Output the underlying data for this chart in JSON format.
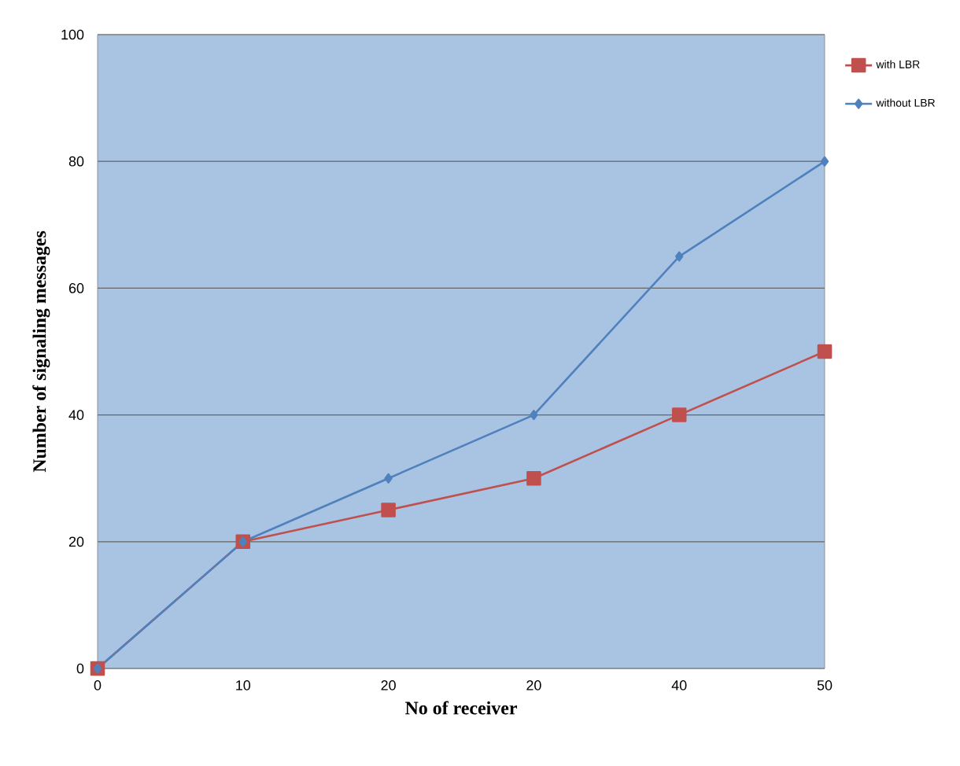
{
  "chart_data": {
    "type": "line",
    "xlabel": "No of receiver",
    "ylabel": "Number of signaling messages",
    "categories": [
      "0",
      "10",
      "20",
      "20",
      "40",
      "50"
    ],
    "series": [
      {
        "name": "with LBR",
        "color": "#c0504d",
        "marker": "square",
        "values": [
          0,
          20,
          25,
          30,
          40,
          50
        ]
      },
      {
        "name": "without LBR",
        "color": "#4f81bd",
        "marker": "diamond",
        "values": [
          0,
          20,
          30,
          40,
          65,
          80
        ]
      }
    ],
    "ylim": [
      0,
      100
    ],
    "yticks": [
      0,
      20,
      40,
      60,
      80,
      100
    ],
    "grid": "y",
    "legend": "top right"
  }
}
